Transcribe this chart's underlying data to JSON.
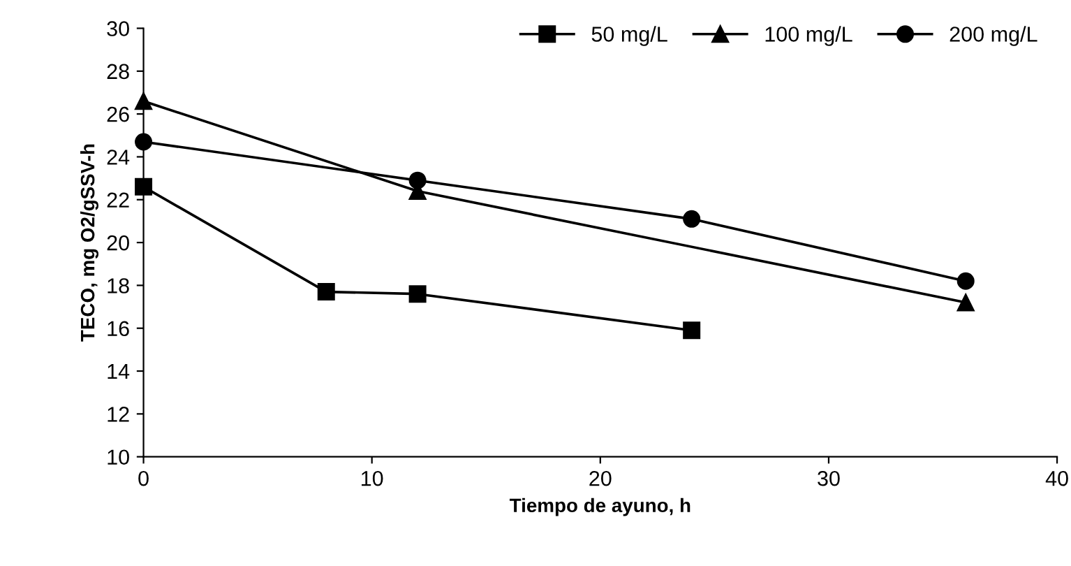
{
  "chart_data": {
    "type": "line",
    "xlabel": "Tiempo de ayuno, h",
    "ylabel": "TECO, mg O2/gSSV-h",
    "xlim": [
      0,
      40
    ],
    "xticks": [
      0,
      10,
      20,
      30,
      40
    ],
    "ylim": [
      10,
      30
    ],
    "yticks": [
      10,
      12,
      14,
      16,
      18,
      20,
      22,
      24,
      26,
      28,
      30
    ],
    "grid": false,
    "legend": "top right",
    "series": [
      {
        "name": "50 mg/L",
        "color": "#000000",
        "marker": "square",
        "x": [
          0,
          8,
          12,
          24
        ],
        "values": [
          22.6,
          17.7,
          17.6,
          15.9
        ]
      },
      {
        "name": "100 mg/L",
        "color": "#000000",
        "marker": "triangle",
        "x": [
          0,
          12,
          36
        ],
        "values": [
          26.6,
          22.4,
          17.2
        ]
      },
      {
        "name": "200 mg/L",
        "color": "#000000",
        "marker": "circle",
        "x": [
          0,
          12,
          24,
          36
        ],
        "values": [
          24.7,
          22.9,
          21.1,
          18.2
        ]
      }
    ]
  }
}
